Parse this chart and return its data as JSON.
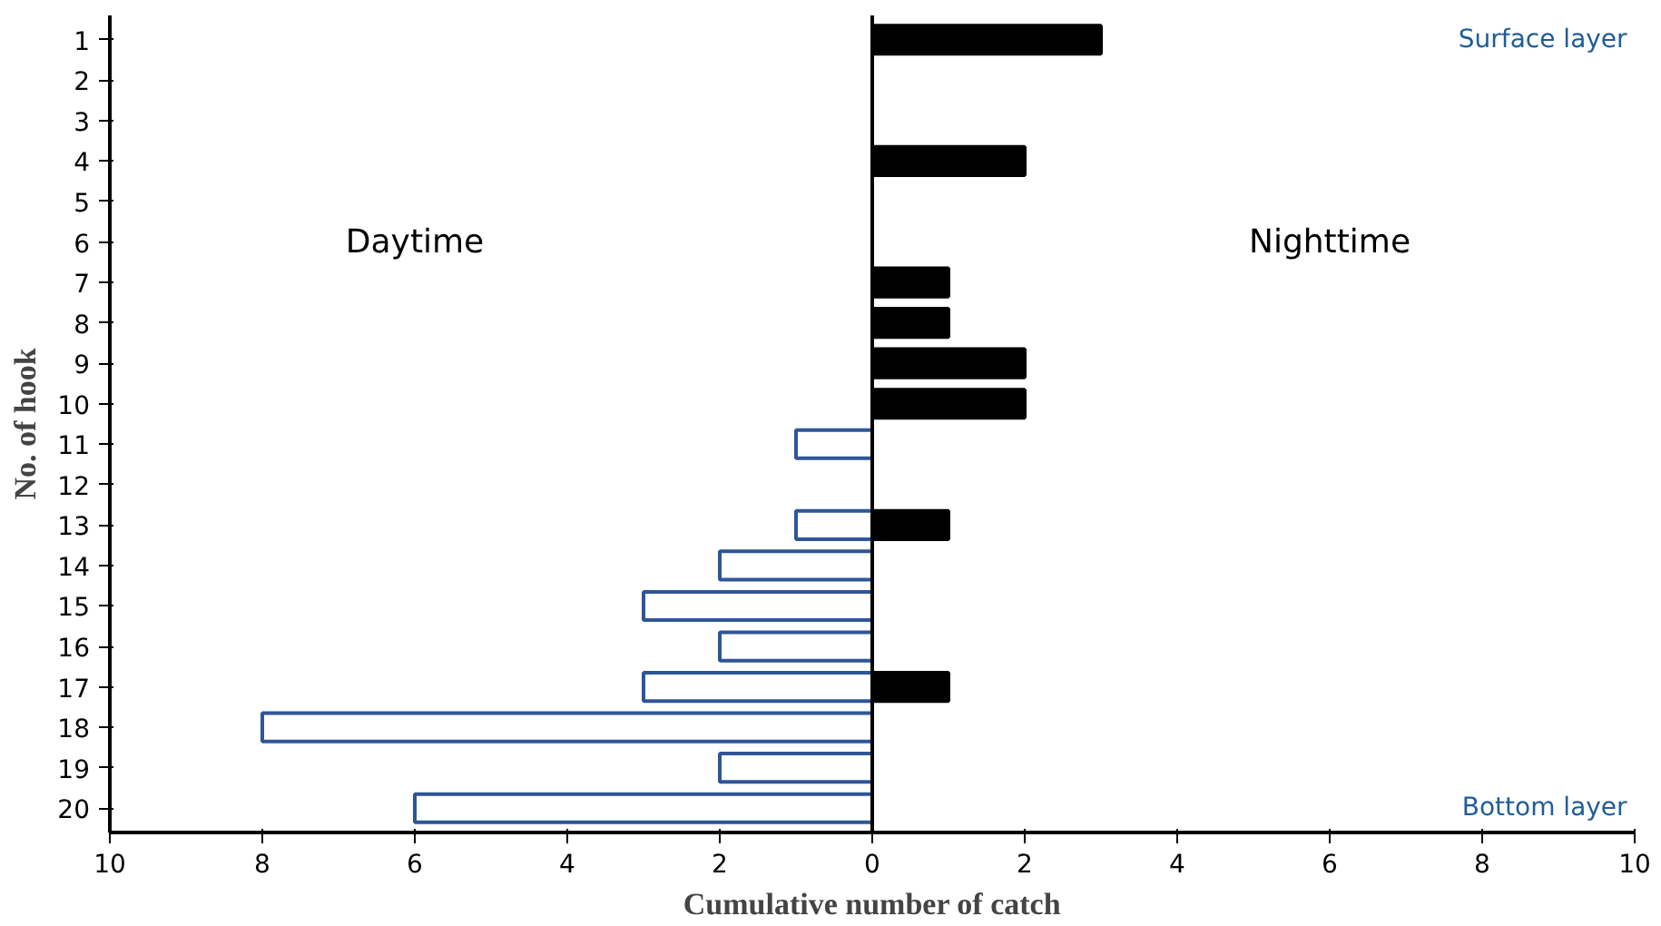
{
  "chart_data": {
    "type": "bar",
    "orientation": "horizontal",
    "xlabel": "Cumulative number of catch",
    "ylabel": "No. of hook",
    "categories": [
      "1",
      "2",
      "3",
      "4",
      "5",
      "6",
      "7",
      "8",
      "9",
      "10",
      "11",
      "12",
      "13",
      "14",
      "15",
      "16",
      "17",
      "18",
      "19",
      "20"
    ],
    "series": [
      {
        "color": "#2f5597",
        "values": [
          null,
          null,
          null,
          null,
          null,
          null,
          null,
          null,
          null,
          null,
          -1,
          null,
          -1,
          -2,
          -3,
          -2,
          -3,
          -8,
          -2,
          -6
        ]
      },
      {
        "color": "#000000",
        "values": [
          3,
          null,
          null,
          2,
          null,
          null,
          1,
          1,
          2,
          2,
          null,
          null,
          1,
          null,
          null,
          null,
          1,
          null,
          null,
          null
        ]
      }
    ],
    "xlim": [
      -10,
      10
    ],
    "xticks": [
      {
        "value": -10,
        "label": "10"
      },
      {
        "value": -8,
        "label": "8"
      },
      {
        "value": -6,
        "label": "6"
      },
      {
        "value": -4,
        "label": "4"
      },
      {
        "value": -2,
        "label": "2"
      },
      0,
      2,
      4,
      6,
      8,
      10
    ],
    "ref_lines": [
      {
        "axis": "x",
        "value": 0
      }
    ],
    "annotations": [
      "Daytime",
      "Nighttime",
      "Surface layer",
      "Bottom layer"
    ],
    "grid": false
  }
}
